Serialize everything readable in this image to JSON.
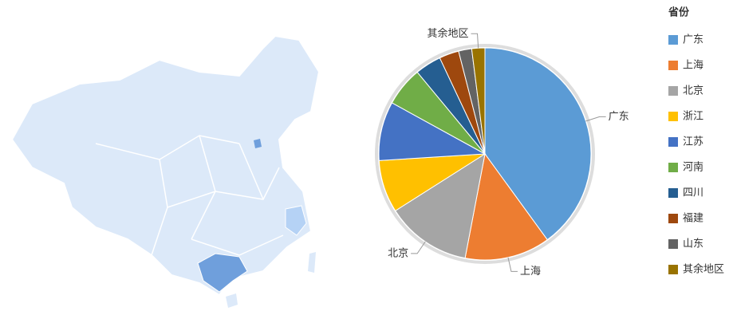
{
  "chart_data": {
    "type": "pie",
    "legend_title": "省份",
    "categories": [
      "广东",
      "上海",
      "北京",
      "浙江",
      "江苏",
      "河南",
      "四川",
      "福建",
      "山东",
      "其余地区"
    ],
    "values": [
      40,
      13,
      13,
      8,
      9,
      6,
      4,
      3,
      2,
      2
    ],
    "colors": [
      "#5b9bd5",
      "#ed7d31",
      "#a5a5a5",
      "#ffc000",
      "#4472c4",
      "#70ad47",
      "#255e91",
      "#9e480e",
      "#636363",
      "#997300"
    ],
    "legend": "right"
  }
}
